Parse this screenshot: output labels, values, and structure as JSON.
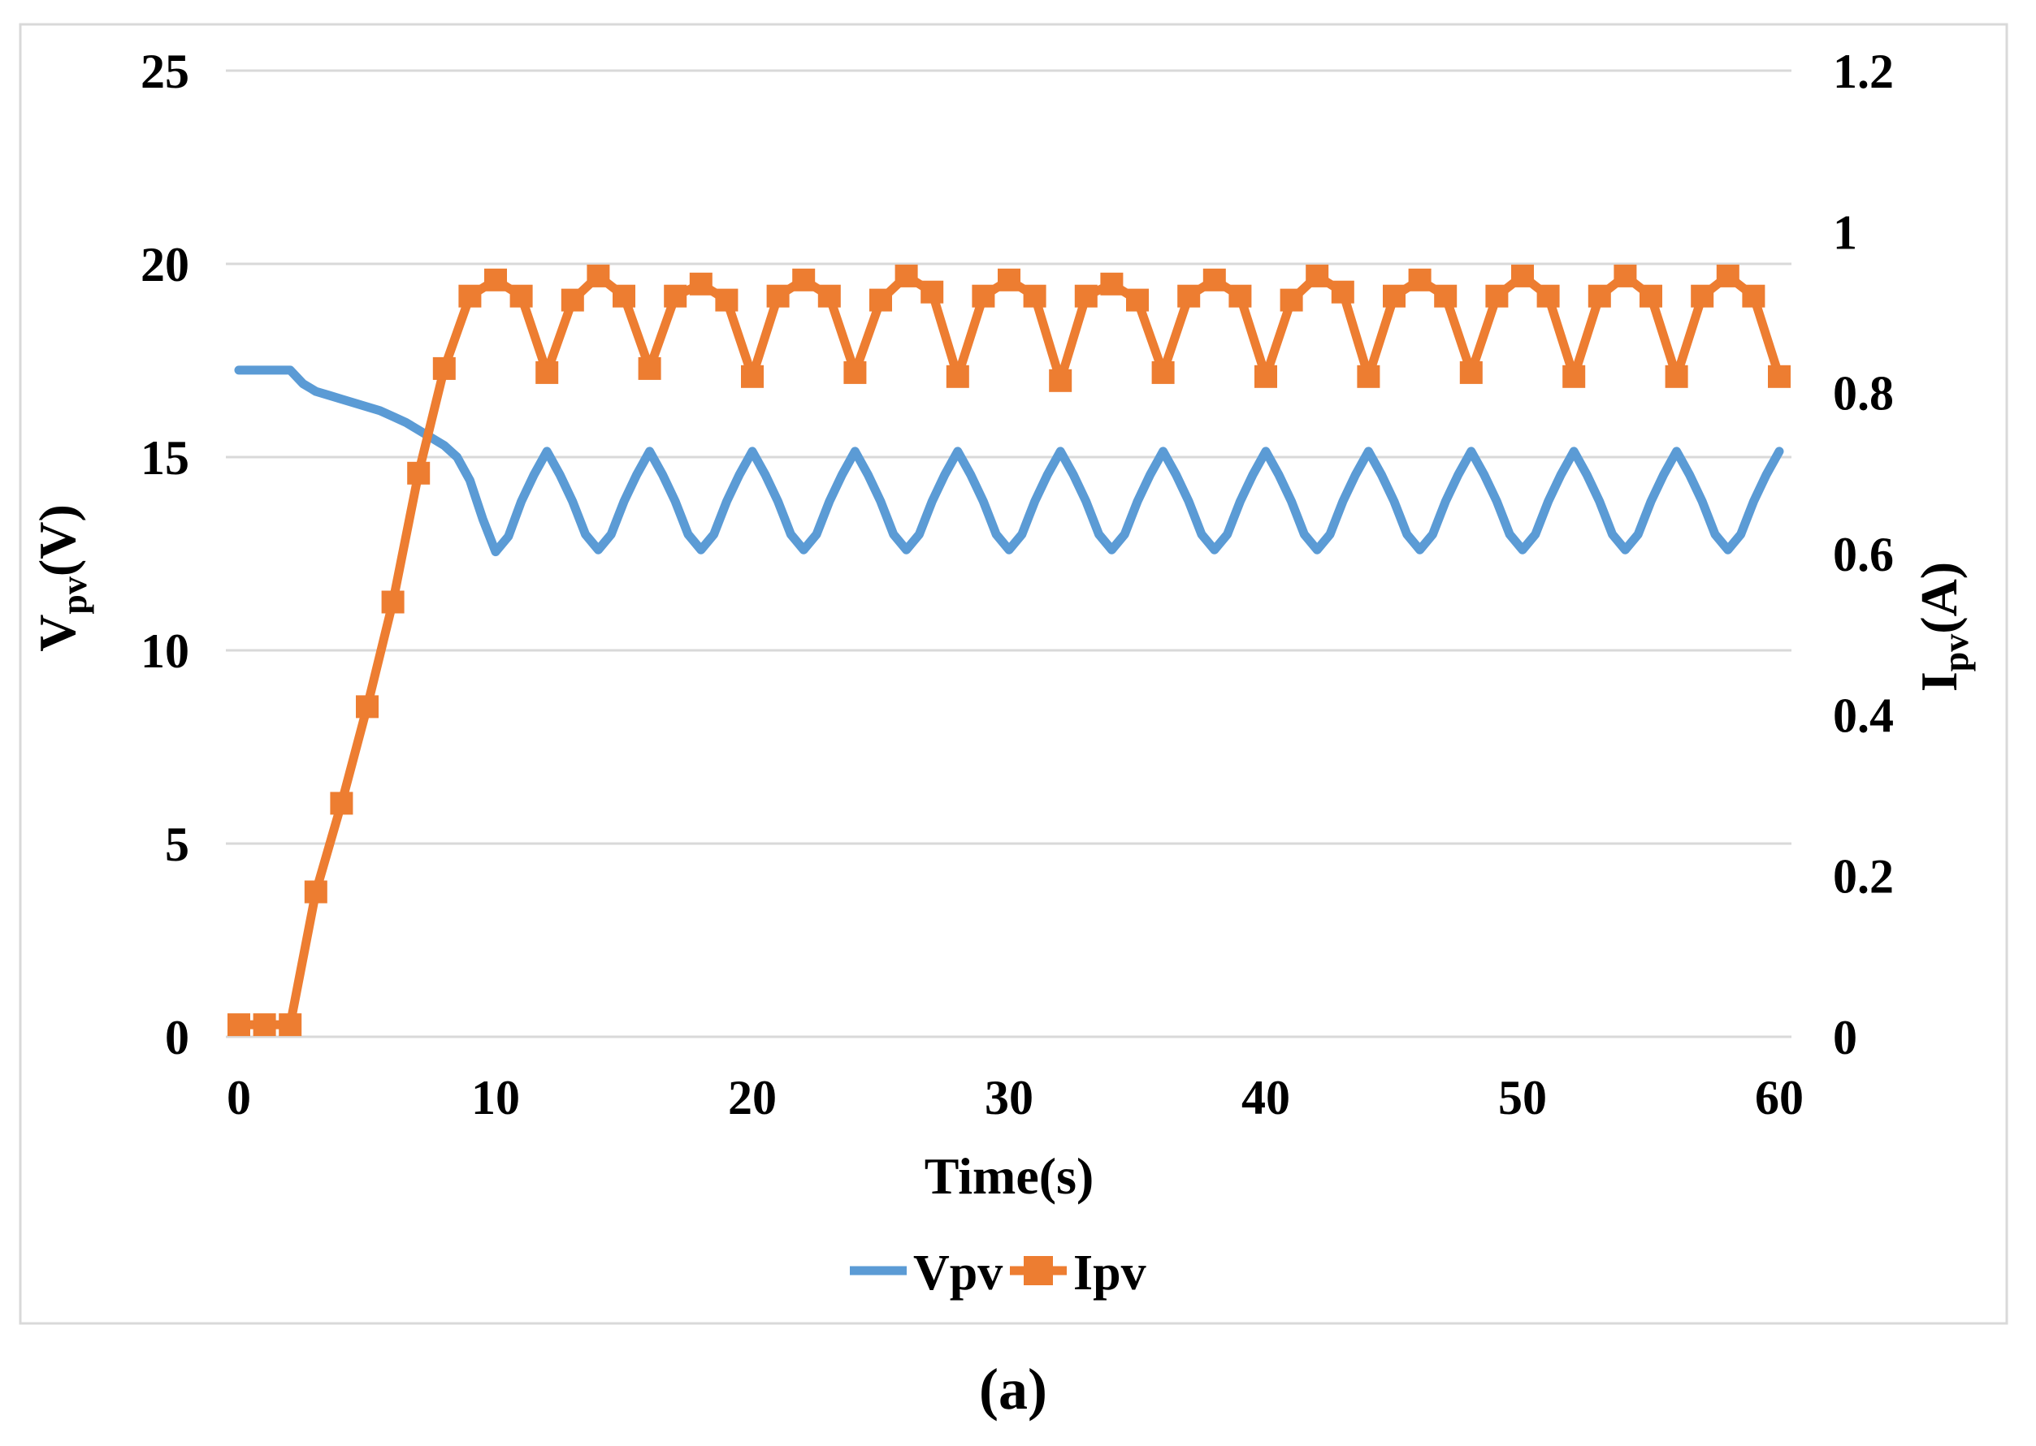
{
  "figure": {
    "caption": "(a)",
    "background_color": "#FFFFFF",
    "border_color": "#D9D9D9",
    "gridline_color": "#D9D9D9"
  },
  "chart_data": {
    "type": "line",
    "title": "",
    "xlabel": "Time(s)",
    "ylabel_left": {
      "main": "V",
      "sub": "pv",
      "unit": "(V)"
    },
    "ylabel_right": {
      "main": "I",
      "sub": "pv",
      "unit": "(A)"
    },
    "x_range": [
      0,
      60
    ],
    "left_range": [
      0,
      25
    ],
    "right_range": [
      0,
      1.2
    ],
    "x_ticks": [
      0,
      10,
      20,
      30,
      40,
      50,
      60
    ],
    "left_ticks": [
      0,
      5,
      10,
      15,
      20,
      25
    ],
    "right_ticks": [
      0,
      0.2,
      0.4,
      0.6,
      0.8,
      1,
      1.2
    ],
    "grid": true,
    "legend_position": "bottom",
    "legend": [
      {
        "label": "Vpv",
        "color": "#5B9BD5",
        "marker": "line"
      },
      {
        "label": "Ipv",
        "color": "#ED7D31",
        "marker": "line-square"
      }
    ],
    "series": [
      {
        "name": "Vpv",
        "axis": "left",
        "color": "#5B9BD5",
        "line_width": 11,
        "marker": "none",
        "x_start": 0,
        "x_step": 0.5,
        "values": [
          17.25,
          17.25,
          17.25,
          17.25,
          17.25,
          16.9,
          16.7,
          16.6,
          16.5,
          16.4,
          16.3,
          16.2,
          16.05,
          15.9,
          15.7,
          15.5,
          15.3,
          15.0,
          14.4,
          13.4,
          12.55,
          12.95,
          13.85,
          14.55,
          15.15,
          14.55,
          13.85,
          13.0,
          12.6,
          13.0,
          13.85,
          14.55,
          15.15,
          14.55,
          13.85,
          13.0,
          12.6,
          13.0,
          13.85,
          14.55,
          15.15,
          14.55,
          13.85,
          13.0,
          12.6,
          13.0,
          13.85,
          14.55,
          15.15,
          14.55,
          13.85,
          13.0,
          12.6,
          13.0,
          13.85,
          14.55,
          15.15,
          14.55,
          13.85,
          13.0,
          12.6,
          13.0,
          13.85,
          14.55,
          15.15,
          14.55,
          13.85,
          13.0,
          12.6,
          13.0,
          13.85,
          14.55,
          15.15,
          14.55,
          13.85,
          13.0,
          12.6,
          13.0,
          13.85,
          14.55,
          15.15,
          14.55,
          13.85,
          13.0,
          12.6,
          13.0,
          13.85,
          14.55,
          15.15,
          14.55,
          13.85,
          13.0,
          12.6,
          13.0,
          13.85,
          14.55,
          15.15,
          14.55,
          13.85,
          13.0,
          12.6,
          13.0,
          13.85,
          14.55,
          15.15,
          14.55,
          13.85,
          13.0,
          12.6,
          13.0,
          13.85,
          14.55,
          15.15,
          14.55,
          13.85,
          13.0,
          12.6,
          13.0,
          13.85,
          14.55,
          15.15
        ]
      },
      {
        "name": "Ipv",
        "axis": "right",
        "color": "#ED7D31",
        "line_width": 11,
        "marker": "square",
        "marker_size": 28,
        "x_start": 0,
        "x_step": 1,
        "values": [
          0.015,
          0.015,
          0.015,
          0.18,
          0.29,
          0.41,
          0.54,
          0.7,
          0.83,
          0.92,
          0.94,
          0.92,
          0.825,
          0.915,
          0.945,
          0.92,
          0.83,
          0.92,
          0.935,
          0.915,
          0.82,
          0.92,
          0.94,
          0.92,
          0.825,
          0.915,
          0.945,
          0.925,
          0.82,
          0.92,
          0.94,
          0.92,
          0.815,
          0.92,
          0.935,
          0.915,
          0.825,
          0.92,
          0.94,
          0.92,
          0.82,
          0.915,
          0.945,
          0.925,
          0.82,
          0.92,
          0.94,
          0.92,
          0.825,
          0.92,
          0.945,
          0.92,
          0.82,
          0.92,
          0.945,
          0.92,
          0.82,
          0.92,
          0.945,
          0.92,
          0.82
        ]
      }
    ]
  }
}
